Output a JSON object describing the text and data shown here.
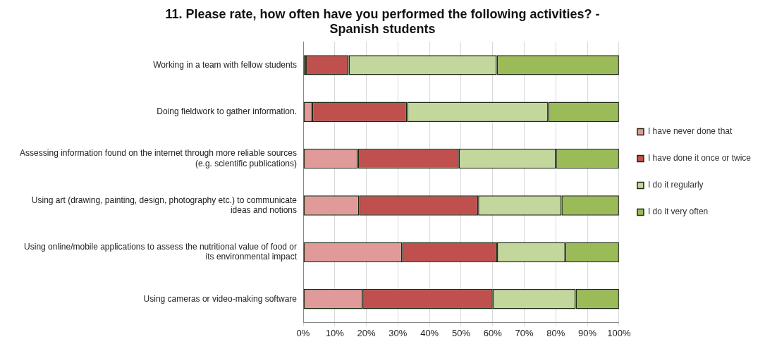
{
  "chart_data": {
    "type": "bar",
    "orientation": "horizontal",
    "stacked": true,
    "title": "11. Please rate, how often have you performed the following activities? - Spanish students",
    "categories": [
      "Working in a team with fellow students",
      "Doing fieldwork to gather information.",
      "Assessing information found on the internet through more reliable sources (e.g. scientific publications)",
      "Using art (drawing, painting, design, photography etc.) to communicate ideas and notions",
      "Using online/mobile applications to assess the nutritional value of food or its environmental impact",
      "Using cameras or video-making software"
    ],
    "series": [
      {
        "name": "I have never done that",
        "color": "#e09a9a",
        "values": [
          0.9,
          2.9,
          17.3,
          17.7,
          31.3,
          18.8
        ]
      },
      {
        "name": "I have done it once or twice",
        "color": "#c0504d",
        "values": [
          13.5,
          30,
          32,
          37.7,
          30.1,
          41.2
        ]
      },
      {
        "name": "I do it regularly",
        "color": "#c3d69b",
        "values": [
          46.9,
          44.7,
          30.7,
          26.4,
          21.6,
          26.3
        ]
      },
      {
        "name": "I do it very often",
        "color": "#9bbb59",
        "values": [
          38.7,
          22.4,
          20,
          18.2,
          17,
          13.7
        ]
      }
    ],
    "xlim": [
      0,
      100
    ],
    "xticks": [
      {
        "value": 0,
        "label": "0%"
      },
      {
        "value": 10,
        "label": "10%"
      },
      {
        "value": 20,
        "label": "20%"
      },
      {
        "value": 30,
        "label": "30%"
      },
      {
        "value": 40,
        "label": "40%"
      },
      {
        "value": 50,
        "label": "50%"
      },
      {
        "value": 60,
        "label": "60%"
      },
      {
        "value": 70,
        "label": "70%"
      },
      {
        "value": 80,
        "label": "80%"
      },
      {
        "value": 90,
        "label": "90%"
      },
      {
        "value": 100,
        "label": "100%"
      }
    ],
    "grid": "x",
    "legend": "right"
  }
}
